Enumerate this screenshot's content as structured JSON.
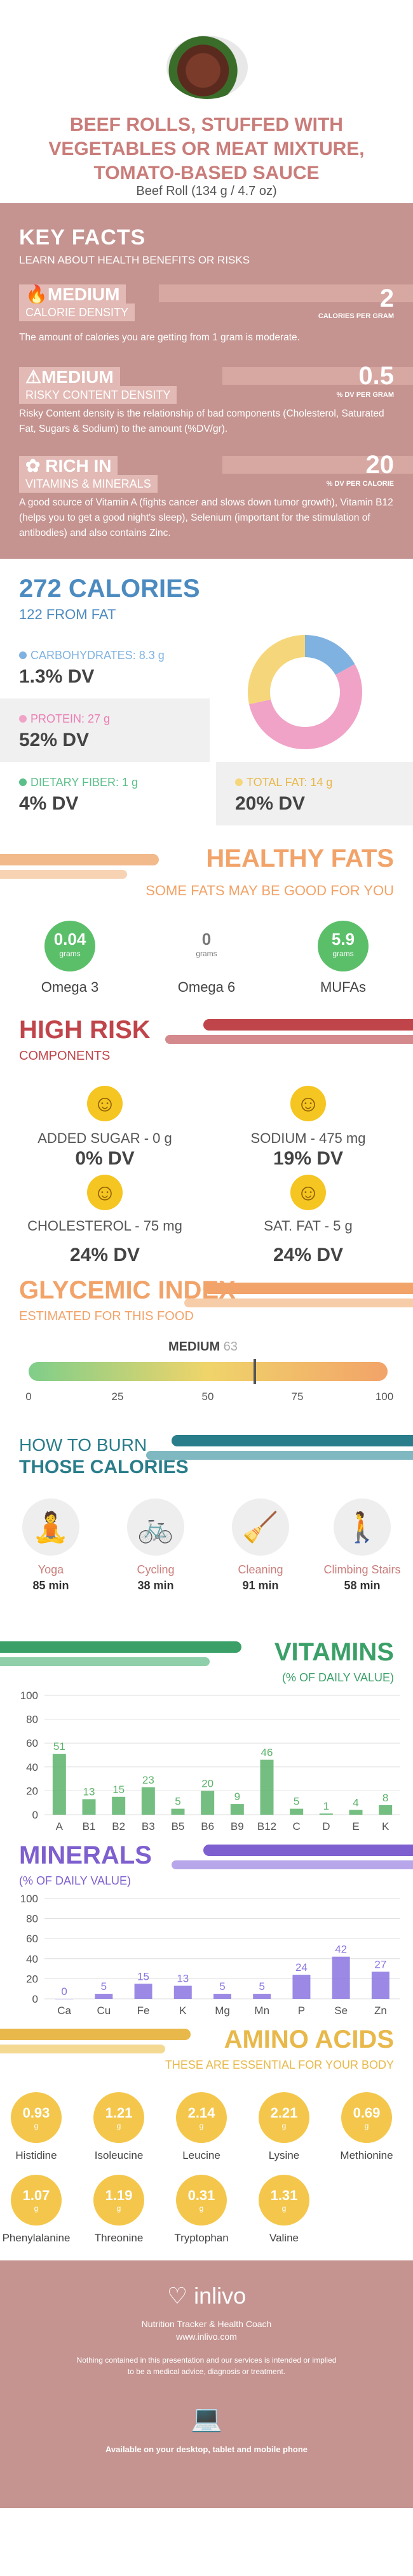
{
  "header": {
    "title": "BEEF ROLLS, STUFFED WITH VEGETABLES OR MEAT MIXTURE, TOMATO-BASED SAUCE",
    "serving": "Beef Roll (134 g / 4.7 oz)"
  },
  "key_facts": {
    "title": "KEY FACTS",
    "subtitle": "LEARN ABOUT HEALTH BENEFITS OR RISKS",
    "items": [
      {
        "level": "MEDIUM",
        "label": "CALORIE DENSITY",
        "value": "2",
        "unit": "CALORIES PER GRAM",
        "desc": "The amount of calories you are getting from 1 gram is moderate."
      },
      {
        "level": "MEDIUM",
        "label": "RISKY CONTENT DENSITY",
        "value": "0.5",
        "unit": "% DV PER GRAM",
        "desc": "Risky Content density is the relationship of bad components (Cholesterol, Saturated Fat, Sugars & Sodium) to the amount (%DV/gr)."
      },
      {
        "level": "RICH IN",
        "label": "VITAMINS & MINERALS",
        "value": "20",
        "unit": "% DV PER CALORIE",
        "desc": "A good source of Vitamin A (fights cancer and slows down tumor growth), Vitamin B12 (helps you to get a good night's sleep), Selenium (important for the stimulation of antibodies) and also contains Zinc."
      }
    ]
  },
  "calories": {
    "title": "272 CALORIES",
    "fat": "122 FROM FAT",
    "carbs": {
      "label": "CARBOHYDRATES: 8.3 g",
      "dv": "1.3% DV"
    },
    "protein": {
      "label": "PROTEIN: 27 g",
      "dv": "52% DV"
    },
    "fiber": {
      "label": "DIETARY FIBER: 1 g",
      "dv": "4% DV"
    },
    "total_fat": {
      "label": "TOTAL FAT: 14 g",
      "dv": "20% DV"
    },
    "colors": {
      "carbs": "#7fb2e0",
      "protein": "#f0a3c7",
      "fiber": "#5bbf8a",
      "fat": "#f6d67a"
    },
    "donut": [
      {
        "name": "carbs",
        "value": 8.3
      },
      {
        "name": "protein",
        "value": 27
      },
      {
        "name": "fat",
        "value": 14
      }
    ]
  },
  "healthy_fats": {
    "title": "HEALTHY FATS",
    "subtitle": "SOME FATS MAY BE GOOD FOR YOU",
    "items": [
      {
        "value": "0.04",
        "unit": "grams",
        "label": "Omega 3",
        "color": "#5bbf6a"
      },
      {
        "value": "0",
        "unit": "grams",
        "label": "Omega 6",
        "color": "#ffffff"
      },
      {
        "value": "5.9",
        "unit": "grams",
        "label": "MUFAs",
        "color": "#5bbf6a"
      }
    ]
  },
  "high_risk": {
    "title": "HIGH RISK",
    "subtitle": "COMPONENTS",
    "items": [
      {
        "label": "ADDED SUGAR - 0 g",
        "dv": "0% DV",
        "face": "grin"
      },
      {
        "label": "SODIUM - 475 mg",
        "dv": "19% DV",
        "face": "smile"
      },
      {
        "label": "CHOLESTEROL - 75 mg",
        "dv": "24% DV",
        "face": "smile"
      },
      {
        "label": "SAT. FAT - 5 g",
        "dv": "24% DV",
        "face": "smile"
      }
    ]
  },
  "glycemic": {
    "title": "GLYCEMIC INDEX",
    "subtitle": "ESTIMATED FOR THIS FOOD",
    "level": "MEDIUM",
    "value": 63,
    "value_text": "63",
    "ticks": [
      "0",
      "25",
      "50",
      "75",
      "100"
    ]
  },
  "burn": {
    "title1": "HOW TO BURN",
    "title2": "THOSE CALORIES",
    "items": [
      {
        "name": "Yoga",
        "min": "85 min",
        "icon": "yoga-icon"
      },
      {
        "name": "Cycling",
        "min": "38 min",
        "icon": "cycling-icon"
      },
      {
        "name": "Cleaning",
        "min": "91 min",
        "icon": "cleaning-icon"
      },
      {
        "name": "Climbing Stairs",
        "min": "58 min",
        "icon": "stairs-icon"
      }
    ]
  },
  "chart_data": [
    {
      "type": "bar",
      "title": "VITAMINS",
      "subtitle": "(% OF DAILY VALUE)",
      "categories": [
        "A",
        "B1",
        "B2",
        "B3",
        "B5",
        "B6",
        "B9",
        "B12",
        "C",
        "D",
        "E",
        "K"
      ],
      "values": [
        51,
        13,
        15,
        23,
        5,
        20,
        9,
        46,
        5,
        1,
        4,
        8
      ],
      "ylim": [
        0,
        100
      ],
      "yticks": [
        0,
        20,
        40,
        60,
        80,
        100
      ],
      "color": "#5db36b"
    },
    {
      "type": "bar",
      "title": "MINERALS",
      "subtitle": "(% OF DAILY VALUE)",
      "categories": [
        "Ca",
        "Cu",
        "Fe",
        "K",
        "Mg",
        "Mn",
        "P",
        "Se",
        "Zn"
      ],
      "values": [
        0,
        5,
        15,
        13,
        5,
        5,
        24,
        42,
        27
      ],
      "ylim": [
        0,
        100
      ],
      "yticks": [
        0,
        20,
        40,
        60,
        80,
        100
      ],
      "color": "#8a74e0"
    }
  ],
  "amino": {
    "title": "AMINO ACIDS",
    "subtitle": "THESE ARE ESSENTIAL FOR YOUR BODY",
    "unit": "g",
    "items": [
      {
        "value": "0.93",
        "label": "Histidine"
      },
      {
        "value": "1.21",
        "label": "Isoleucine"
      },
      {
        "value": "2.14",
        "label": "Leucine"
      },
      {
        "value": "2.21",
        "label": "Lysine"
      },
      {
        "value": "0.69",
        "label": "Methionine"
      },
      {
        "value": "1.07",
        "label": "Phenylalanine"
      },
      {
        "value": "1.19",
        "label": "Threonine"
      },
      {
        "value": "0.31",
        "label": "Tryptophan"
      },
      {
        "value": "1.31",
        "label": "Valine"
      }
    ]
  },
  "footer": {
    "brand": "inlivo",
    "tagline": "Nutrition Tracker & Health Coach",
    "url": "www.inlivo.com",
    "disclaimer1": "Nothing contained in this presentation and our services is intended or implied",
    "disclaimer2": "to be a medical advice, diagnosis or treatment.",
    "available": "Available on your desktop, tablet and mobile phone"
  }
}
